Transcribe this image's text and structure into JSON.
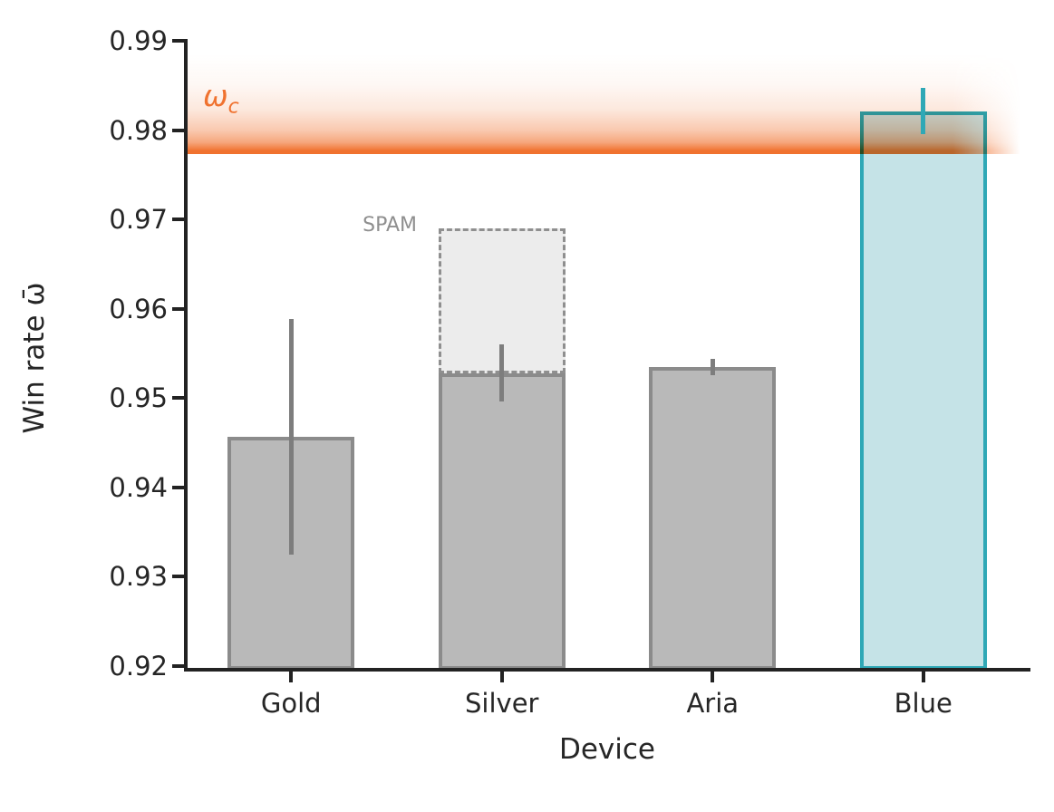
{
  "chart_data": {
    "type": "bar",
    "title": "",
    "xlabel": "Device",
    "ylabel": "Win rate ω̄",
    "categories": [
      "Gold",
      "Silver",
      "Aria",
      "Blue"
    ],
    "values": [
      0.9457,
      0.9528,
      0.9535,
      0.9821
    ],
    "error_bars": [
      0.0132,
      0.0032,
      0.0009,
      0.0026
    ],
    "ylim": [
      0.92,
      0.99
    ],
    "yticks": [
      0.92,
      0.93,
      0.94,
      0.95,
      0.96,
      0.97,
      0.98,
      0.99
    ],
    "grid": false,
    "legend_position": "none",
    "highlighted_category": "Blue",
    "threshold": {
      "value": 0.9775,
      "symbol": "ω",
      "subscript": "c"
    },
    "spam_overlay": {
      "category": "Silver",
      "from": 0.9528,
      "to": 0.969,
      "label": "SPAM"
    }
  },
  "colors": {
    "gray_bar_fill": "#b9b9b9",
    "gray_bar_edge": "#8b8b8b",
    "gray_error": "#7d7d7d",
    "highlight_fill": "#c5e3e7",
    "highlight_edge": "#2fa8b6",
    "threshold_orange": "#f0722f",
    "spam_fill": "#ececec",
    "spam_edge": "#8f8f8f",
    "spam_text": "#8f8f8f",
    "axis_text": "#262626",
    "spine": "#222222"
  }
}
